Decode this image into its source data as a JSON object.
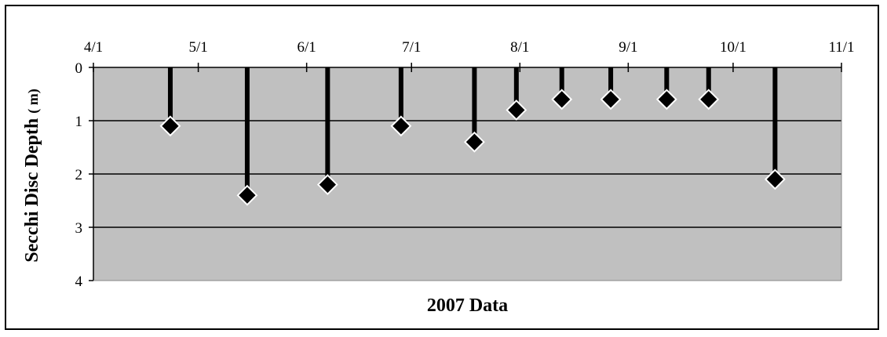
{
  "chart_data": {
    "type": "scatter",
    "xlabel": "2007 Data",
    "ylabel": "Secchi Disc Depth",
    "ylabel_unit": "( m)",
    "x_axis_position": "top",
    "y_inverted": true,
    "ylim": [
      0,
      4
    ],
    "y_ticks": [
      "0",
      "1",
      "2",
      "3",
      "4"
    ],
    "x_range": [
      "2007-04-01",
      "2007-11-01"
    ],
    "x_ticks": [
      {
        "label": "4/1",
        "date": "2007-04-01"
      },
      {
        "label": "5/1",
        "date": "2007-05-01"
      },
      {
        "label": "6/1",
        "date": "2007-06-01"
      },
      {
        "label": "7/1",
        "date": "2007-07-01"
      },
      {
        "label": "8/1",
        "date": "2007-08-01"
      },
      {
        "label": "9/1",
        "date": "2007-09-01"
      },
      {
        "label": "10/1",
        "date": "2007-10-01"
      },
      {
        "label": "11/1",
        "date": "2007-11-01"
      }
    ],
    "grid": true,
    "drop_lines": true,
    "points": [
      {
        "x": "2007-04-23",
        "y": 1.1
      },
      {
        "x": "2007-05-15",
        "y": 2.4
      },
      {
        "x": "2007-06-07",
        "y": 2.2
      },
      {
        "x": "2007-06-28",
        "y": 1.1
      },
      {
        "x": "2007-07-19",
        "y": 1.4
      },
      {
        "x": "2007-07-31",
        "y": 0.8
      },
      {
        "x": "2007-08-13",
        "y": 0.6
      },
      {
        "x": "2007-08-27",
        "y": 0.6
      },
      {
        "x": "2007-09-12",
        "y": 0.6
      },
      {
        "x": "2007-09-24",
        "y": 0.6
      },
      {
        "x": "2007-10-13",
        "y": 2.1
      }
    ],
    "colors": {
      "plot_background": "#c0c0c0",
      "marker_fill": "#000000",
      "marker_stroke": "#ffffff",
      "line": "#000000"
    }
  }
}
